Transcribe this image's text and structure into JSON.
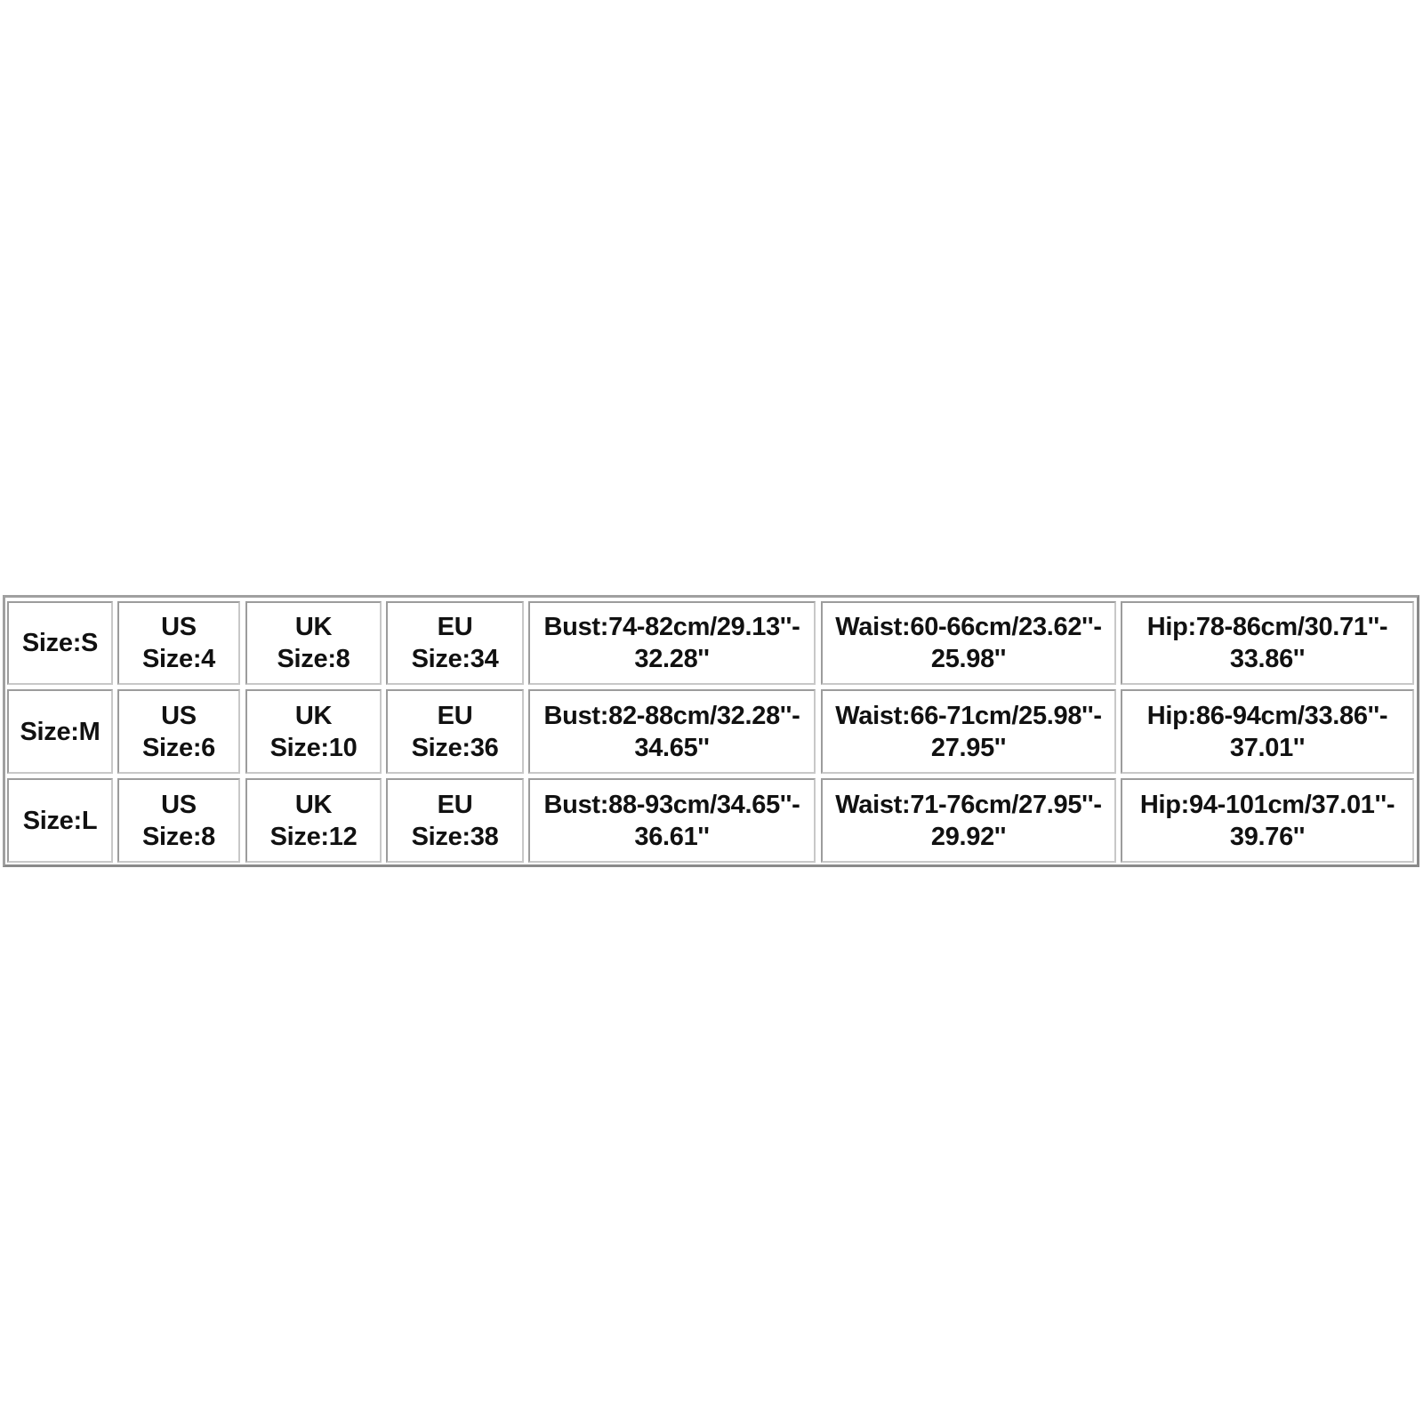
{
  "table": {
    "rows": [
      [
        "Size:S",
        "US\nSize:4",
        "UK\nSize:8",
        "EU\nSize:34",
        "Bust:74-82cm/29.13''-\n32.28''",
        "Waist:60-66cm/23.62''-\n25.98''",
        "Hip:78-86cm/30.71''-\n33.86''"
      ],
      [
        "Size:M",
        "US\nSize:6",
        "UK\nSize:10",
        "EU\nSize:36",
        "Bust:82-88cm/32.28''-\n34.65''",
        "Waist:66-71cm/25.98''-\n27.95''",
        "Hip:86-94cm/33.86''-\n37.01''"
      ],
      [
        "Size:L",
        "US\nSize:8",
        "UK\nSize:12",
        "EU\nSize:38",
        "Bust:88-93cm/34.65''-\n36.61''",
        "Waist:71-76cm/27.95''-\n29.92''",
        "Hip:94-101cm/37.01''-\n39.76''"
      ]
    ]
  }
}
